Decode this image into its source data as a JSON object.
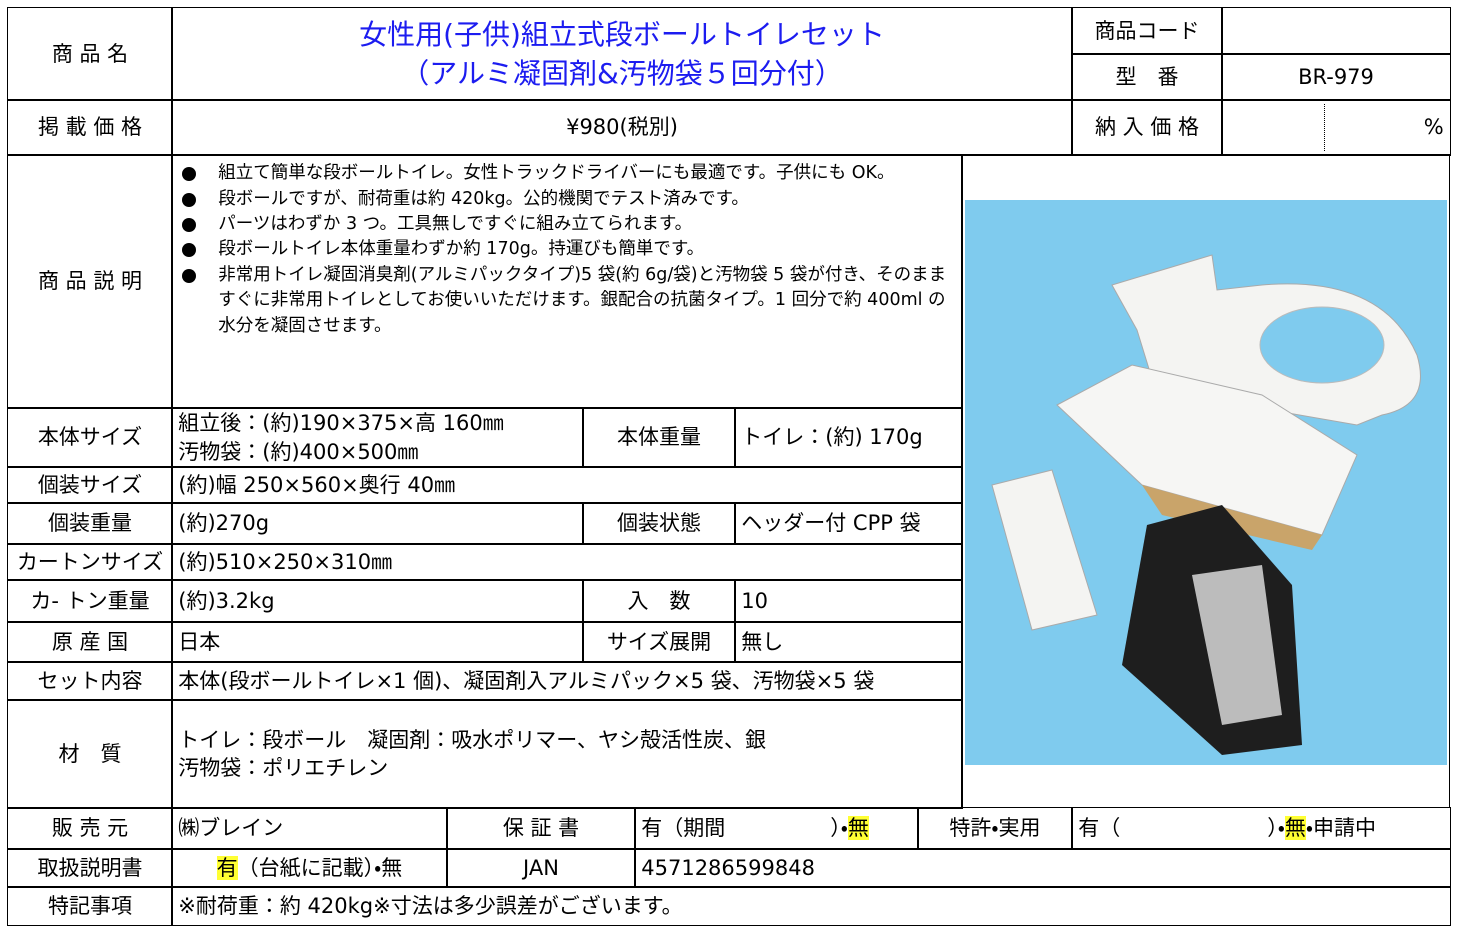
{
  "header": {
    "name_label": "商 品 名",
    "name_lines": [
      "女性用(子供)組立式段ボールトイレセット",
      "（アルミ凝固剤&汚物袋５回分付）"
    ],
    "code_label": "商品コード",
    "model_label": "型　番",
    "model": "BR-979"
  },
  "price": {
    "label": "掲 載 価 格",
    "value": "¥980(税別)",
    "delivery_label": "納 入 価 格",
    "delivery_unit": "%"
  },
  "description": {
    "label": "商 品 説 明",
    "bullets": [
      "組立て簡単な段ボールトイレ。女性トラックドライバーにも最適です。子供にも OK。",
      "段ボールですが、耐荷重は約 420kg。公的機関でテスト済みです。",
      "パーツはわずか 3 つ。工具無しですぐに組み立てられます。",
      "段ボールトイレ本体重量わずか約 170g。持運びも簡単です。",
      "非常用トイレ凝固消臭剤(アルミパックタイプ)5 袋(約 6g/袋)と汚物袋 5 袋が付き、そのまますぐに非常用トイレとしてお使いいただけます。銀配合の抗菌タイプ。1 回分で約 400ml の水分を凝固させます。"
    ]
  },
  "specs": {
    "body_size": {
      "label": "本体サイズ",
      "lines": [
        "組立後：(約)190×375×高 160㎜",
        "汚物袋：(約)400×500㎜"
      ],
      "weight_label": "本体重量",
      "weight": "トイレ：(約) 170g"
    },
    "package_size": {
      "label": "個装サイズ",
      "value": "(約)幅 250×560×奥行 40㎜"
    },
    "package_weight": {
      "label": "個装重量",
      "value": "(約)270g",
      "state_label": "個装状態",
      "state": "ヘッダー付 CPP 袋"
    },
    "carton_size": {
      "label": "カートンサイズ",
      "value": "(約)510×250×310㎜"
    },
    "carton_weight": {
      "label": "カ- トン重量",
      "value": "(約)3.2kg",
      "qty_label": "入　数",
      "qty": "10"
    },
    "origin": {
      "label": "原 産 国",
      "value": "日本",
      "sizes_label": "サイズ展開",
      "sizes": "無し"
    },
    "contents": {
      "label": "セット内容",
      "value": "本体(段ボールトイレ×1 個)、凝固剤入アルミパック×5 袋、汚物袋×5 袋"
    },
    "material": {
      "label": "材　質",
      "lines": [
        "トイレ：段ボール　凝固剤：吸水ポリマー、ヤシ殻活性炭、銀",
        "汚物袋：ポリエチレン"
      ]
    }
  },
  "footer": {
    "seller_label": "販 売 元",
    "seller": "㈱ブレイン",
    "warranty_label": "保 証 書",
    "warranty": {
      "before": "有（期間　　　　　）・",
      "highlight": "無"
    },
    "patent_label": "特許・実用",
    "patent": {
      "before": "有（　　　　　　　）・",
      "highlight": "無",
      "after": "・申請中"
    },
    "manual_label": "取扱説明書",
    "manual": {
      "highlight": "有",
      "after": "（台紙に記載）・無"
    },
    "jan_label": "JAN",
    "jan": "4571286599848",
    "notes_label": "特記事項",
    "notes": "※耐荷重：約 420kg※寸法は多少誤差がございます。"
  }
}
